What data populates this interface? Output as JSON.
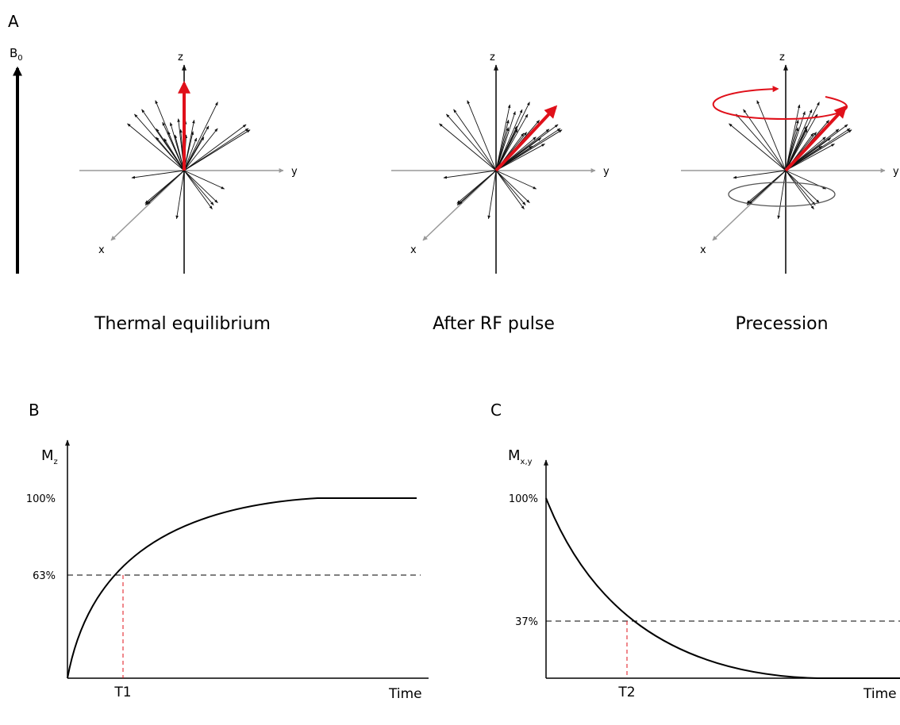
{
  "panel_a": {
    "label": "A",
    "field": {
      "symbol": "B",
      "subscript": "0"
    },
    "diagrams": [
      {
        "axes": {
          "z": "z",
          "y": "y",
          "x": "x"
        },
        "caption": "Thermal equilibrium"
      },
      {
        "axes": {
          "z": "z",
          "y": "y",
          "x": "x"
        },
        "caption": "After RF pulse"
      },
      {
        "axes": {
          "z": "z",
          "y": "y",
          "x": "x"
        },
        "caption": "Precession"
      }
    ]
  },
  "panel_b": {
    "label": "B",
    "y_axis": {
      "symbol": "M",
      "subscript": "z"
    },
    "y_labels": [
      "100%",
      "63%"
    ],
    "x_marker": "T1",
    "x_axis": "Time"
  },
  "panel_c": {
    "label": "C",
    "y_axis": {
      "symbol": "M",
      "subscript": "x,y"
    },
    "y_labels": [
      "100%",
      "37%"
    ],
    "x_marker": "T2",
    "x_axis": "Time"
  }
}
